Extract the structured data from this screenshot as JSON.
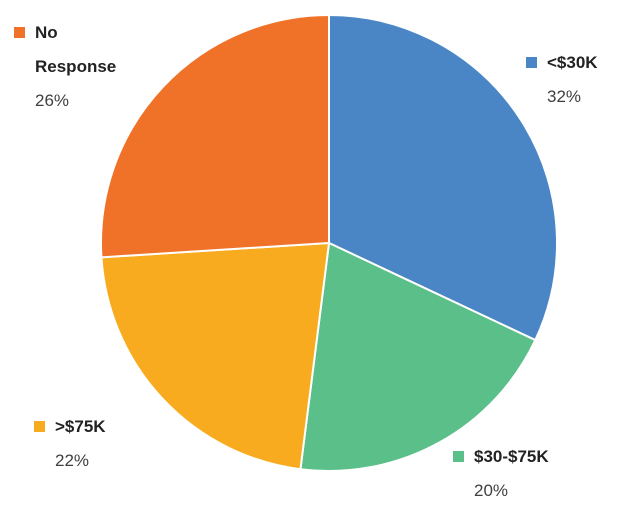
{
  "chart_data": {
    "type": "pie",
    "categories": [
      "<$30K",
      "$30-$75K",
      ">$75K",
      "No Response"
    ],
    "values": [
      32,
      20,
      22,
      26
    ],
    "value_labels": [
      "32%",
      "20%",
      "22%",
      "26%"
    ],
    "colors": [
      "#4a86c6",
      "#5bbf8a",
      "#f9ab1f",
      "#f07228"
    ]
  }
}
